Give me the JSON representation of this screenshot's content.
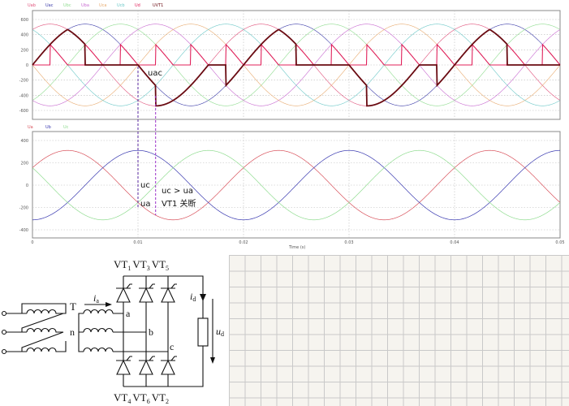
{
  "chart_data": [
    {
      "type": "line",
      "title": "",
      "xlabel": "",
      "ylabel": "",
      "xlim": [
        0,
        0.05
      ],
      "ylim": [
        -700,
        700
      ],
      "yticks": [
        "600",
        "400",
        "200",
        "0",
        "-200",
        "-400",
        "-600"
      ],
      "grid": true,
      "legend": "top-left",
      "frequency_hz": 50,
      "series": [
        {
          "name": "Uab",
          "color": "#e0507a",
          "amplitude": 539,
          "phase_deg": 60
        },
        {
          "name": "Uac",
          "color": "#3a3aa8",
          "amplitude": 539,
          "phase_deg": 0
        },
        {
          "name": "Ubc",
          "color": "#8fdc8f",
          "amplitude": 539,
          "phase_deg": -60
        },
        {
          "name": "Uba",
          "color": "#c86ad0",
          "amplitude": 539,
          "phase_deg": 240
        },
        {
          "name": "Uca",
          "color": "#e8ab70",
          "amplitude": 539,
          "phase_deg": 180
        },
        {
          "name": "Ucb",
          "color": "#6cc8c8",
          "amplitude": 539,
          "phase_deg": 120
        },
        {
          "name": "Ud",
          "color": "#e0205a",
          "firing_angle_deg": 90,
          "peak_at_firing": 270
        },
        {
          "name": "UVT1",
          "color": "#6a0b12",
          "points_one_period": [
            [
              0,
              0
            ],
            [
              0.00333,
              467
            ],
            [
              0.005,
              270
            ],
            [
              0.005,
              0
            ],
            [
              0.01,
              0
            ],
            [
              0.01167,
              -270
            ],
            [
              0.01167,
              -540
            ],
            [
              0.01667,
              0
            ],
            [
              0.01833,
              0
            ],
            [
              0.01833,
              -270
            ],
            [
              0.02,
              0
            ]
          ]
        }
      ],
      "annotations": [
        "uac"
      ]
    },
    {
      "type": "line",
      "title": "",
      "xlabel": "Time (s)",
      "ylabel": "",
      "xlim": [
        0,
        0.05
      ],
      "ylim": [
        -480,
        480
      ],
      "xticks": [
        "0",
        "0.01",
        "0.02",
        "0.03",
        "0.04",
        "0.05"
      ],
      "yticks": [
        "400",
        "200",
        "0",
        "-200",
        "-400"
      ],
      "grid": true,
      "legend": "top-left",
      "frequency_hz": 50,
      "series": [
        {
          "name": "Ua",
          "color": "#d8505a",
          "amplitude": 311,
          "phase_deg": 30
        },
        {
          "name": "Ub",
          "color": "#3a3ab0",
          "amplitude": 311,
          "phase_deg": -90
        },
        {
          "name": "Uc",
          "color": "#90dc90",
          "amplitude": 311,
          "phase_deg": 150
        }
      ],
      "annotations": [
        "uc",
        "ua",
        "uc > ua",
        "VT1 关断"
      ],
      "marker_times": [
        0.01,
        0.01167
      ]
    }
  ],
  "circuit": {
    "top_thyristors": "VT1 VT3 VT5",
    "bottom_thyristors": "VT4 VT6 VT2",
    "labels": {
      "T": "T",
      "ia": "i",
      "ia_sub": "a",
      "n": "n",
      "a": "a",
      "b": "b",
      "c": "c",
      "id": "i",
      "id_sub": "d",
      "ud": "u",
      "ud_sub": "d"
    },
    "vt_top": [
      {
        "n": "VT",
        "s": "1"
      },
      {
        "n": "VT",
        "s": "3"
      },
      {
        "n": "VT",
        "s": "5"
      }
    ],
    "vt_bottom": [
      {
        "n": "VT",
        "s": "4"
      },
      {
        "n": "VT",
        "s": "6"
      },
      {
        "n": "VT",
        "s": "2"
      }
    ]
  }
}
